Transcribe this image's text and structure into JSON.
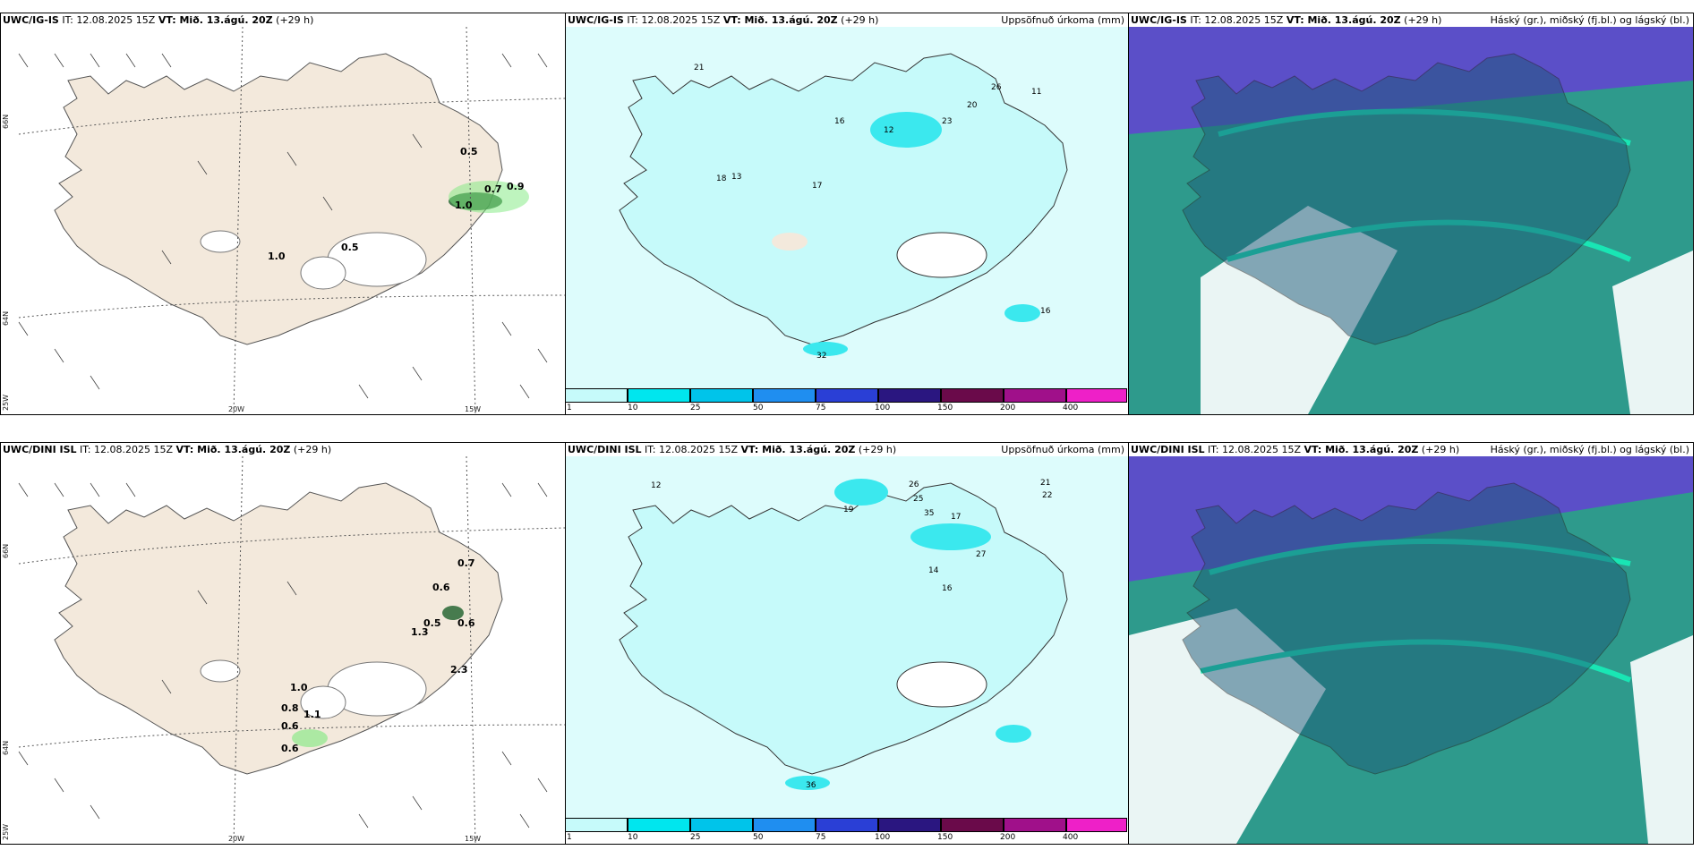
{
  "colors": {
    "land": "#f3e9dc",
    "precip_light": "#c6fafa",
    "precip_cyan": "#3be8ee",
    "cloud_high": "#2e9a8c",
    "cloud_mid": "#5b4fc8",
    "cloud_low": "#e8e6ff"
  },
  "panels": {
    "ig_wind": {
      "model": "UWC/IG-IS",
      "it_label": "IT: 12.08.2025 15Z",
      "vt_label": "VT: Mið. 13.ágú. 20Z",
      "lead": "(+29 h)",
      "values": [
        "0.5",
        "0.7",
        "0.9",
        "1.0",
        "0.5",
        "1.0"
      ],
      "axis": [
        "66N",
        "64N",
        "25W",
        "20W",
        "15W"
      ]
    },
    "ig_precip": {
      "model": "UWC/IG-IS",
      "it_label": "IT: 12.08.2025 15Z",
      "vt_label": "VT: Mið. 13.ágú. 20Z",
      "lead": "(+29 h)",
      "right": "Uppsöfnuð úrkoma (mm)",
      "values": [
        "26",
        "23",
        "20",
        "21",
        "18",
        "13",
        "16",
        "17",
        "32",
        "12",
        "11",
        "16"
      ]
    },
    "ig_cloud": {
      "model": "UWC/IG-IS",
      "it_label": "IT: 12.08.2025 15Z",
      "vt_label": "VT: Mið. 13.ágú. 20Z",
      "lead": "(+29 h)",
      "right": "Háský (gr.), miðský (fj.bl.) og lágský (bl.)"
    },
    "dini_wind": {
      "model": "UWC/DINI ISL",
      "it_label": "IT: 12.08.2025 15Z",
      "vt_label": "VT: Mið. 13.ágú. 20Z",
      "lead": "(+29 h)",
      "values": [
        "0.7",
        "0.6",
        "0.5",
        "0.6",
        "1.3",
        "2.3",
        "1.0",
        "0.8",
        "1.1",
        "0.6",
        "0.6"
      ],
      "axis": [
        "66N",
        "64N",
        "25W",
        "20W",
        "15W"
      ]
    },
    "dini_precip": {
      "model": "UWC/DINI ISL",
      "it_label": "IT: 12.08.2025 15Z",
      "vt_label": "VT: Mið. 13.ágú. 20Z",
      "lead": "(+29 h)",
      "right": "Uppsöfnuð úrkoma (mm)",
      "values": [
        "26",
        "25",
        "21",
        "22",
        "27",
        "17",
        "19",
        "35",
        "36",
        "12",
        "14",
        "16"
      ]
    },
    "dini_cloud": {
      "model": "UWC/DINI ISL",
      "it_label": "IT: 12.08.2025 15Z",
      "vt_label": "VT: Mið. 13.ágú. 20Z",
      "lead": "(+29 h)",
      "right": "Háský (gr.), miðský (fj.bl.) og lágský (bl.)"
    }
  },
  "precip_scale": {
    "ticks": [
      "1",
      "10",
      "25",
      "50",
      "75",
      "100",
      "150",
      "200",
      "400"
    ],
    "colors": [
      "#c6fafa",
      "#00e6ee",
      "#00c4ea",
      "#1f8ef0",
      "#2a3fd6",
      "#2a1680",
      "#6a0a4a",
      "#a0108a",
      "#ee20c8",
      "#f4b2f0"
    ]
  }
}
